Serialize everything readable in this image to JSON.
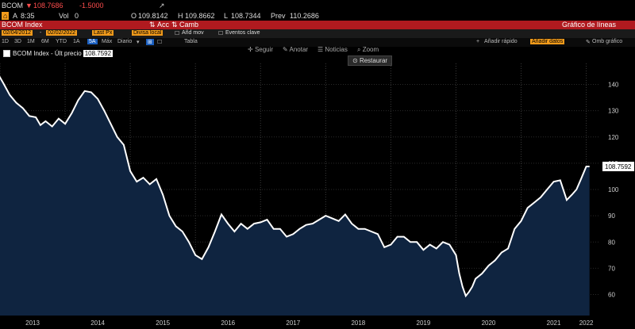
{
  "header": {
    "ticker": "BCOM",
    "last_price": "108.7686",
    "change": "-1.5000",
    "at_prefix": "A",
    "time": "8:35",
    "vol_label": "Vol",
    "vol_value": "0",
    "open_label": "O",
    "open_value": "109.8142",
    "high_label": "H",
    "high_value": "109.8662",
    "low_label": "L",
    "low_value": "108.7344",
    "prev_label": "Prev",
    "prev_value": "110.2686"
  },
  "title_bar": {
    "security": "BCOM Index",
    "actions_label": "Acc",
    "change_label": "Camb",
    "chart_label": "Gráfico de líneas"
  },
  "toolbar": {
    "start_date": "02/04/2012",
    "end_date": "02/02/2022",
    "field": "Last Px",
    "currency": "Divisa local",
    "add_indicator": "Añd mov",
    "events": "Eventos clave"
  },
  "period_bar": {
    "periods": [
      "1D",
      "3D",
      "1M",
      "6M",
      "YTD",
      "1A",
      "5A",
      "Máx"
    ],
    "active_period": "5A",
    "frequency": "Diario",
    "table_label": "Tabla",
    "quick_add": "Añadir rápido",
    "add_data": "Añadir datos",
    "my_chart": "Omb gráfico"
  },
  "tools": {
    "follow": "Seguir",
    "annotate": "Anotar",
    "news": "Noticias",
    "zoom": "Zoom",
    "restore": "Restaurar"
  },
  "legend": {
    "label": "BCOM Index - Últ precio",
    "value": "108.7592"
  },
  "colors": {
    "background": "#000000",
    "area_fill": "#0f2440",
    "line": "#ffffff",
    "title_bar": "#b01a1f",
    "highlight": "#f29b1b"
  },
  "chart_data": {
    "type": "area",
    "title": "",
    "xlabel": "",
    "ylabel": "",
    "ylim": [
      52,
      148
    ],
    "xlim": [
      2013.0,
      2022.2
    ],
    "y_ticks": [
      60,
      70,
      80,
      90,
      100,
      110,
      120,
      130,
      140
    ],
    "x_ticks": [
      "2013",
      "2014",
      "2015",
      "2016",
      "2017",
      "2018",
      "2019",
      "2020",
      "2021",
      "2022"
    ],
    "grid": true,
    "last_value": "108.7592",
    "series": [
      {
        "name": "BCOM Index - Últ precio",
        "x": [
          2012.98,
          2013.05,
          2013.15,
          2013.25,
          2013.35,
          2013.45,
          2013.55,
          2013.62,
          2013.7,
          2013.8,
          2013.9,
          2014.0,
          2014.1,
          2014.2,
          2014.3,
          2014.4,
          2014.5,
          2014.6,
          2014.7,
          2014.8,
          2014.9,
          2015.0,
          2015.1,
          2015.2,
          2015.3,
          2015.4,
          2015.5,
          2015.6,
          2015.7,
          2015.8,
          2015.9,
          2016.0,
          2016.1,
          2016.2,
          2016.3,
          2016.4,
          2016.5,
          2016.6,
          2016.7,
          2016.8,
          2016.9,
          2017.0,
          2017.1,
          2017.2,
          2017.3,
          2017.4,
          2017.5,
          2017.6,
          2017.7,
          2017.8,
          2017.9,
          2018.0,
          2018.1,
          2018.2,
          2018.3,
          2018.4,
          2018.5,
          2018.6,
          2018.7,
          2018.8,
          2018.9,
          2019.0,
          2019.1,
          2019.2,
          2019.3,
          2019.4,
          2019.5,
          2019.6,
          2019.7,
          2019.8,
          2019.9,
          2020.0,
          2020.05,
          2020.1,
          2020.15,
          2020.2,
          2020.25,
          2020.3,
          2020.4,
          2020.5,
          2020.6,
          2020.7,
          2020.8,
          2020.9,
          2021.0,
          2021.1,
          2021.2,
          2021.3,
          2021.4,
          2021.5,
          2021.6,
          2021.7,
          2021.78,
          2021.85,
          2021.92,
          2022.0,
          2022.05
        ],
        "values": [
          143.5,
          140.5,
          136.0,
          133.0,
          131.0,
          128.0,
          127.5,
          124.5,
          126.0,
          124.0,
          127.0,
          125.0,
          129.0,
          134.0,
          137.5,
          137.0,
          134.5,
          130.0,
          125.0,
          120.0,
          117.0,
          107.0,
          103.0,
          104.5,
          102.0,
          104.0,
          98.0,
          90.0,
          86.0,
          84.0,
          80.0,
          75.0,
          73.5,
          78.0,
          84.0,
          90.5,
          87.0,
          84.0,
          87.0,
          85.0,
          87.0,
          87.5,
          88.5,
          85.0,
          85.0,
          82.0,
          83.0,
          85.0,
          86.5,
          87.0,
          88.5,
          90.0,
          89.0,
          88.0,
          90.5,
          87.0,
          85.0,
          85.0,
          84.0,
          83.0,
          78.0,
          79.0,
          82.0,
          82.0,
          80.0,
          80.0,
          77.0,
          79.0,
          77.5,
          80.0,
          79.0,
          75.0,
          68.0,
          63.0,
          59.5,
          61.0,
          63.0,
          66.0,
          68.0,
          71.0,
          73.0,
          76.0,
          77.5,
          85.0,
          88.0,
          93.0,
          95.0,
          97.0,
          100.0,
          103.0,
          103.5,
          96.0,
          98.0,
          100.0,
          104.0,
          108.7592,
          108.7592
        ]
      }
    ]
  }
}
